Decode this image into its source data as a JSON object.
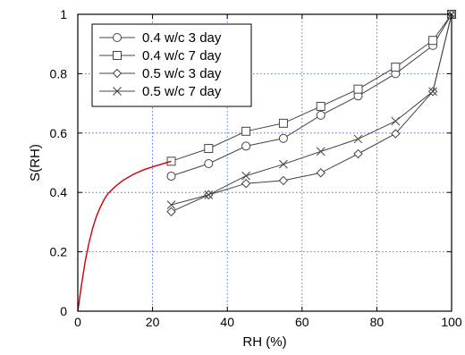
{
  "chart_data": {
    "type": "line",
    "title": "",
    "xlabel": "RH (%)",
    "ylabel": "S(RH)",
    "xlim": [
      0,
      100
    ],
    "ylim": [
      0,
      1
    ],
    "x_ticks": [
      0,
      20,
      40,
      60,
      80,
      100
    ],
    "y_ticks": [
      0,
      0.2,
      0.4,
      0.6,
      0.8,
      1
    ],
    "x_tick_labels": [
      "0",
      "20",
      "40",
      "60",
      "80",
      "100"
    ],
    "y_tick_labels": [
      "0",
      "0.2",
      "0.4",
      "0.6",
      "0.8",
      "1"
    ],
    "grid": true,
    "legend_position": "top-left",
    "series": [
      {
        "name": "0.4 w/c 3 day",
        "marker": "circle",
        "color": "#444444",
        "x": [
          25,
          35,
          45,
          55,
          65,
          75,
          85,
          95,
          100
        ],
        "y": [
          0.455,
          0.497,
          0.556,
          0.582,
          0.66,
          0.725,
          0.8,
          0.895,
          1.0
        ]
      },
      {
        "name": "0.4 w/c 7 day",
        "marker": "square",
        "color": "#444444",
        "x": [
          25,
          35,
          45,
          55,
          65,
          75,
          85,
          95,
          100
        ],
        "y": [
          0.505,
          0.548,
          0.606,
          0.633,
          0.69,
          0.748,
          0.822,
          0.912,
          1.0
        ]
      },
      {
        "name": "0.5 w/c 3 day",
        "marker": "diamond",
        "color": "#444444",
        "x": [
          25,
          35,
          45,
          55,
          65,
          75,
          85,
          95,
          100
        ],
        "y": [
          0.335,
          0.392,
          0.43,
          0.44,
          0.466,
          0.53,
          0.598,
          0.74,
          1.0
        ]
      },
      {
        "name": "0.5 w/c 7 day",
        "marker": "x",
        "color": "#444444",
        "x": [
          25,
          35,
          45,
          55,
          65,
          75,
          85,
          95,
          100
        ],
        "y": [
          0.358,
          0.392,
          0.456,
          0.495,
          0.538,
          0.58,
          0.64,
          0.74,
          1.0
        ]
      },
      {
        "marker": "none",
        "color": "#cc0000",
        "x": [
          0,
          1,
          2,
          3,
          4,
          5,
          6,
          7,
          8,
          10,
          12,
          15,
          18,
          21,
          25
        ],
        "y": [
          0,
          0.09,
          0.17,
          0.23,
          0.28,
          0.32,
          0.35,
          0.375,
          0.395,
          0.42,
          0.44,
          0.462,
          0.478,
          0.49,
          0.505
        ]
      }
    ]
  }
}
